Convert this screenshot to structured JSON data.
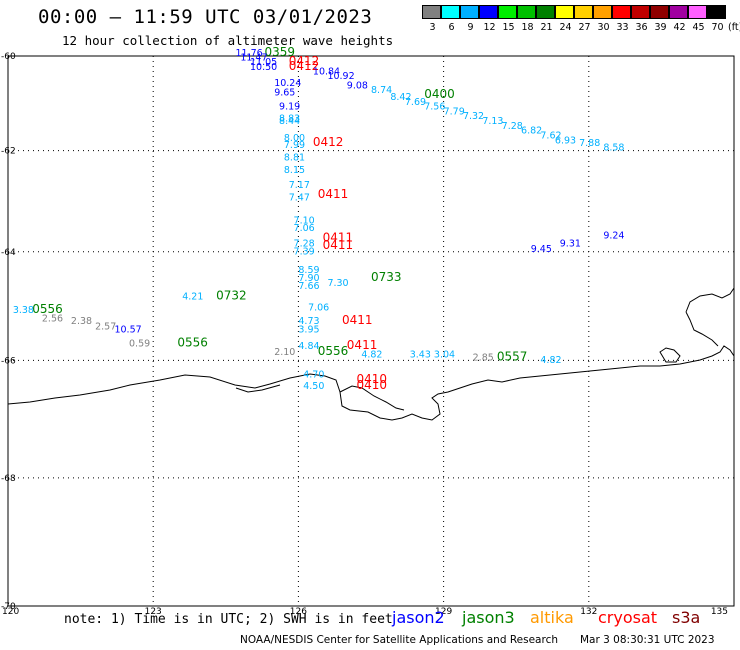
{
  "header": {
    "title": "00:00 – 11:59 UTC 03/01/2023",
    "subtitle": "12 hour collection of altimeter wave heights"
  },
  "color_scale": {
    "unit": "(ft)",
    "swatches": [
      {
        "label": "3",
        "color": "#808080"
      },
      {
        "label": "6",
        "color": "#00ffff"
      },
      {
        "label": "9",
        "color": "#00b0ff"
      },
      {
        "label": "12",
        "color": "#0000ff"
      },
      {
        "label": "15",
        "color": "#00ee00"
      },
      {
        "label": "18",
        "color": "#00c000"
      },
      {
        "label": "21",
        "color": "#008000"
      },
      {
        "label": "24",
        "color": "#ffff00"
      },
      {
        "label": "27",
        "color": "#ffd000"
      },
      {
        "label": "30",
        "color": "#ffa000"
      },
      {
        "label": "33",
        "color": "#ff0000"
      },
      {
        "label": "36",
        "color": "#c00000"
      },
      {
        "label": "39",
        "color": "#900000"
      },
      {
        "label": "42",
        "color": "#a000a0"
      },
      {
        "label": "45",
        "color": "#ff60ff"
      },
      {
        "label": "70",
        "color": "#000000"
      }
    ]
  },
  "map": {
    "lat_labels": [
      "-60",
      "-62",
      "-64",
      "-66",
      "-68",
      "-70"
    ],
    "lon_labels": [
      "120",
      "123",
      "126",
      "129",
      "132",
      "135"
    ],
    "readings": [
      {
        "text": "11.76",
        "color": "#0000ff",
        "lon": 124.7,
        "lat": -60.0
      },
      {
        "text": "0359",
        "color": "#008000",
        "lon": 125.3,
        "lat": -60.0,
        "big": true
      },
      {
        "text": "11.47",
        "color": "#0000ff",
        "lon": 124.8,
        "lat": -60.1
      },
      {
        "text": "11.05",
        "color": "#0000ff",
        "lon": 125.0,
        "lat": -60.2
      },
      {
        "text": "0412",
        "color": "#ff0000",
        "lon": 125.8,
        "lat": -60.2,
        "big": true
      },
      {
        "text": "10.50",
        "color": "#0000ff",
        "lon": 125.0,
        "lat": -60.3
      },
      {
        "text": "0412",
        "color": "#ff0000",
        "lon": 125.8,
        "lat": -60.3,
        "big": true
      },
      {
        "text": "10.84",
        "color": "#0000ff",
        "lon": 126.3,
        "lat": -60.4
      },
      {
        "text": "10.92",
        "color": "#0000ff",
        "lon": 126.6,
        "lat": -60.5
      },
      {
        "text": "10.24",
        "color": "#0000ff",
        "lon": 125.5,
        "lat": -60.65
      },
      {
        "text": "9.65",
        "color": "#0000ff",
        "lon": 125.5,
        "lat": -60.85
      },
      {
        "text": "9.08",
        "color": "#0000ff",
        "lon": 127.0,
        "lat": -60.7
      },
      {
        "text": "8.74",
        "color": "#00b0ff",
        "lon": 127.5,
        "lat": -60.8
      },
      {
        "text": "8.42",
        "color": "#00b0ff",
        "lon": 127.9,
        "lat": -60.95
      },
      {
        "text": "0400",
        "color": "#008000",
        "lon": 128.6,
        "lat": -60.9,
        "big": true
      },
      {
        "text": "7.69",
        "color": "#00b0ff",
        "lon": 128.2,
        "lat": -61.05
      },
      {
        "text": "7.56",
        "color": "#00b0ff",
        "lon": 128.6,
        "lat": -61.15
      },
      {
        "text": "7.79",
        "color": "#00b0ff",
        "lon": 129.0,
        "lat": -61.25
      },
      {
        "text": "7.32",
        "color": "#00b0ff",
        "lon": 129.4,
        "lat": -61.35
      },
      {
        "text": "7.13",
        "color": "#00b0ff",
        "lon": 129.8,
        "lat": -61.45
      },
      {
        "text": "7.28",
        "color": "#00b0ff",
        "lon": 130.2,
        "lat": -61.55
      },
      {
        "text": "6.82",
        "color": "#00b0ff",
        "lon": 130.6,
        "lat": -61.65
      },
      {
        "text": "7.62",
        "color": "#00b0ff",
        "lon": 131.0,
        "lat": -61.75
      },
      {
        "text": "6.93",
        "color": "#00b0ff",
        "lon": 131.3,
        "lat": -61.85
      },
      {
        "text": "7.88",
        "color": "#00b0ff",
        "lon": 131.8,
        "lat": -61.9
      },
      {
        "text": "8.58",
        "color": "#00b0ff",
        "lon": 132.3,
        "lat": -62.0
      },
      {
        "text": "9.19",
        "color": "#0000ff",
        "lon": 125.6,
        "lat": -61.15
      },
      {
        "text": "8.83",
        "color": "#00b0ff",
        "lon": 125.6,
        "lat": -61.4
      },
      {
        "text": "8.44",
        "color": "#00b0ff",
        "lon": 125.6,
        "lat": -61.45
      },
      {
        "text": "8.00",
        "color": "#00b0ff",
        "lon": 125.7,
        "lat": -61.8
      },
      {
        "text": "7.99",
        "color": "#00b0ff",
        "lon": 125.7,
        "lat": -61.95
      },
      {
        "text": "0412",
        "color": "#ff0000",
        "lon": 126.3,
        "lat": -61.9,
        "big": true
      },
      {
        "text": "8.81",
        "color": "#00b0ff",
        "lon": 125.7,
        "lat": -62.2
      },
      {
        "text": "8.15",
        "color": "#00b0ff",
        "lon": 125.7,
        "lat": -62.45
      },
      {
        "text": "7.17",
        "color": "#00b0ff",
        "lon": 125.8,
        "lat": -62.75
      },
      {
        "text": "0411",
        "color": "#ff0000",
        "lon": 126.4,
        "lat": -62.95,
        "big": true
      },
      {
        "text": "7.47",
        "color": "#00b0ff",
        "lon": 125.8,
        "lat": -63.0
      },
      {
        "text": "7.10",
        "color": "#00b0ff",
        "lon": 125.9,
        "lat": -63.45
      },
      {
        "text": "7.06",
        "color": "#00b0ff",
        "lon": 125.9,
        "lat": -63.6
      },
      {
        "text": "7.28",
        "color": "#00b0ff",
        "lon": 125.9,
        "lat": -63.9
      },
      {
        "text": "0411",
        "color": "#ff0000",
        "lon": 126.5,
        "lat": -63.8,
        "big": true
      },
      {
        "text": "7.39",
        "color": "#00b0ff",
        "lon": 125.9,
        "lat": -64.05
      },
      {
        "text": "0411",
        "color": "#ff0000",
        "lon": 126.5,
        "lat": -63.95,
        "big": true
      },
      {
        "text": "8.59",
        "color": "#00b0ff",
        "lon": 126.0,
        "lat": -64.4
      },
      {
        "text": "7.90",
        "color": "#00b0ff",
        "lon": 126.0,
        "lat": -64.55
      },
      {
        "text": "7.66",
        "color": "#00b0ff",
        "lon": 126.0,
        "lat": -64.7
      },
      {
        "text": "7.06",
        "color": "#00b0ff",
        "lon": 126.2,
        "lat": -65.1
      },
      {
        "text": "4.73",
        "color": "#00b0ff",
        "lon": 126.0,
        "lat": -65.35
      },
      {
        "text": "0411",
        "color": "#ff0000",
        "lon": 126.9,
        "lat": -65.35,
        "big": true
      },
      {
        "text": "3.95",
        "color": "#00b0ff",
        "lon": 126.0,
        "lat": -65.5
      },
      {
        "text": "4.84",
        "color": "#00b0ff",
        "lon": 126.0,
        "lat": -65.8
      },
      {
        "text": "0411",
        "color": "#ff0000",
        "lon": 127.0,
        "lat": -65.8,
        "big": true
      },
      {
        "text": "0556",
        "color": "#008000",
        "lon": 126.4,
        "lat": -65.9,
        "big": true
      },
      {
        "text": "2.10",
        "color": "#808080",
        "lon": 125.5,
        "lat": -65.9
      },
      {
        "text": "4.70",
        "color": "#00b0ff",
        "lon": 126.1,
        "lat": -66.3
      },
      {
        "text": "4.50",
        "color": "#00b0ff",
        "lon": 126.1,
        "lat": -66.5
      },
      {
        "text": "0410",
        "color": "#ff0000",
        "lon": 127.2,
        "lat": -66.4,
        "big": true
      },
      {
        "text": "0410",
        "color": "#ff0000",
        "lon": 127.2,
        "lat": -66.5,
        "big": true
      },
      {
        "text": "0.59",
        "color": "#808080",
        "lon": 122.5,
        "lat": -65.75
      },
      {
        "text": "0556",
        "color": "#008000",
        "lon": 123.5,
        "lat": -65.75,
        "big": true
      },
      {
        "text": "0556",
        "color": "#008000",
        "lon": 120.5,
        "lat": -65.15,
        "big": true
      },
      {
        "text": "3.38",
        "color": "#00b0ff",
        "lon": 120.1,
        "lat": -65.15
      },
      {
        "text": "2.56",
        "color": "#808080",
        "lon": 120.7,
        "lat": -65.3
      },
      {
        "text": "2.38",
        "color": "#808080",
        "lon": 121.3,
        "lat": -65.35
      },
      {
        "text": "2.57",
        "color": "#808080",
        "lon": 121.8,
        "lat": -65.45
      },
      {
        "text": "10.57",
        "color": "#0000ff",
        "lon": 122.2,
        "lat": -65.5
      },
      {
        "text": "4.21",
        "color": "#00b0ff",
        "lon": 123.6,
        "lat": -64.9
      },
      {
        "text": "0732",
        "color": "#008000",
        "lon": 124.3,
        "lat": -64.9,
        "big": true
      },
      {
        "text": "7.30",
        "color": "#00b0ff",
        "lon": 126.6,
        "lat": -64.65
      },
      {
        "text": "0733",
        "color": "#008000",
        "lon": 127.5,
        "lat": -64.55,
        "big": true
      },
      {
        "text": "9.45",
        "color": "#0000ff",
        "lon": 130.8,
        "lat": -64.0
      },
      {
        "text": "9.31",
        "color": "#0000ff",
        "lon": 131.4,
        "lat": -63.9
      },
      {
        "text": "9.24",
        "color": "#0000ff",
        "lon": 132.3,
        "lat": -63.75
      },
      {
        "text": "4.82",
        "color": "#00b0ff",
        "lon": 127.3,
        "lat": -65.95
      },
      {
        "text": "3.43",
        "color": "#00b0ff",
        "lon": 128.3,
        "lat": -65.95
      },
      {
        "text": "3.04",
        "color": "#00b0ff",
        "lon": 128.8,
        "lat": -65.95
      },
      {
        "text": "2.85",
        "color": "#808080",
        "lon": 129.6,
        "lat": -66.0
      },
      {
        "text": "0557",
        "color": "#008000",
        "lon": 130.1,
        "lat": -66.0,
        "big": true
      },
      {
        "text": "4.82",
        "color": "#00b0ff",
        "lon": 131.0,
        "lat": -66.05
      }
    ]
  },
  "footer": {
    "note": "note: 1) Time is in UTC; 2) SWH is in feet",
    "satellites": [
      {
        "name": "jason2",
        "color": "#0000ff"
      },
      {
        "name": "jason3",
        "color": "#008000"
      },
      {
        "name": "altika",
        "color": "#ff9900"
      },
      {
        "name": "cryosat",
        "color": "#ff0000"
      },
      {
        "name": "s3a",
        "color": "#800000"
      }
    ],
    "credit": "NOAA/NESDIS Center for Satellite Applications and Research",
    "generated": "Mar  3 08:30:31 UTC 2023"
  }
}
